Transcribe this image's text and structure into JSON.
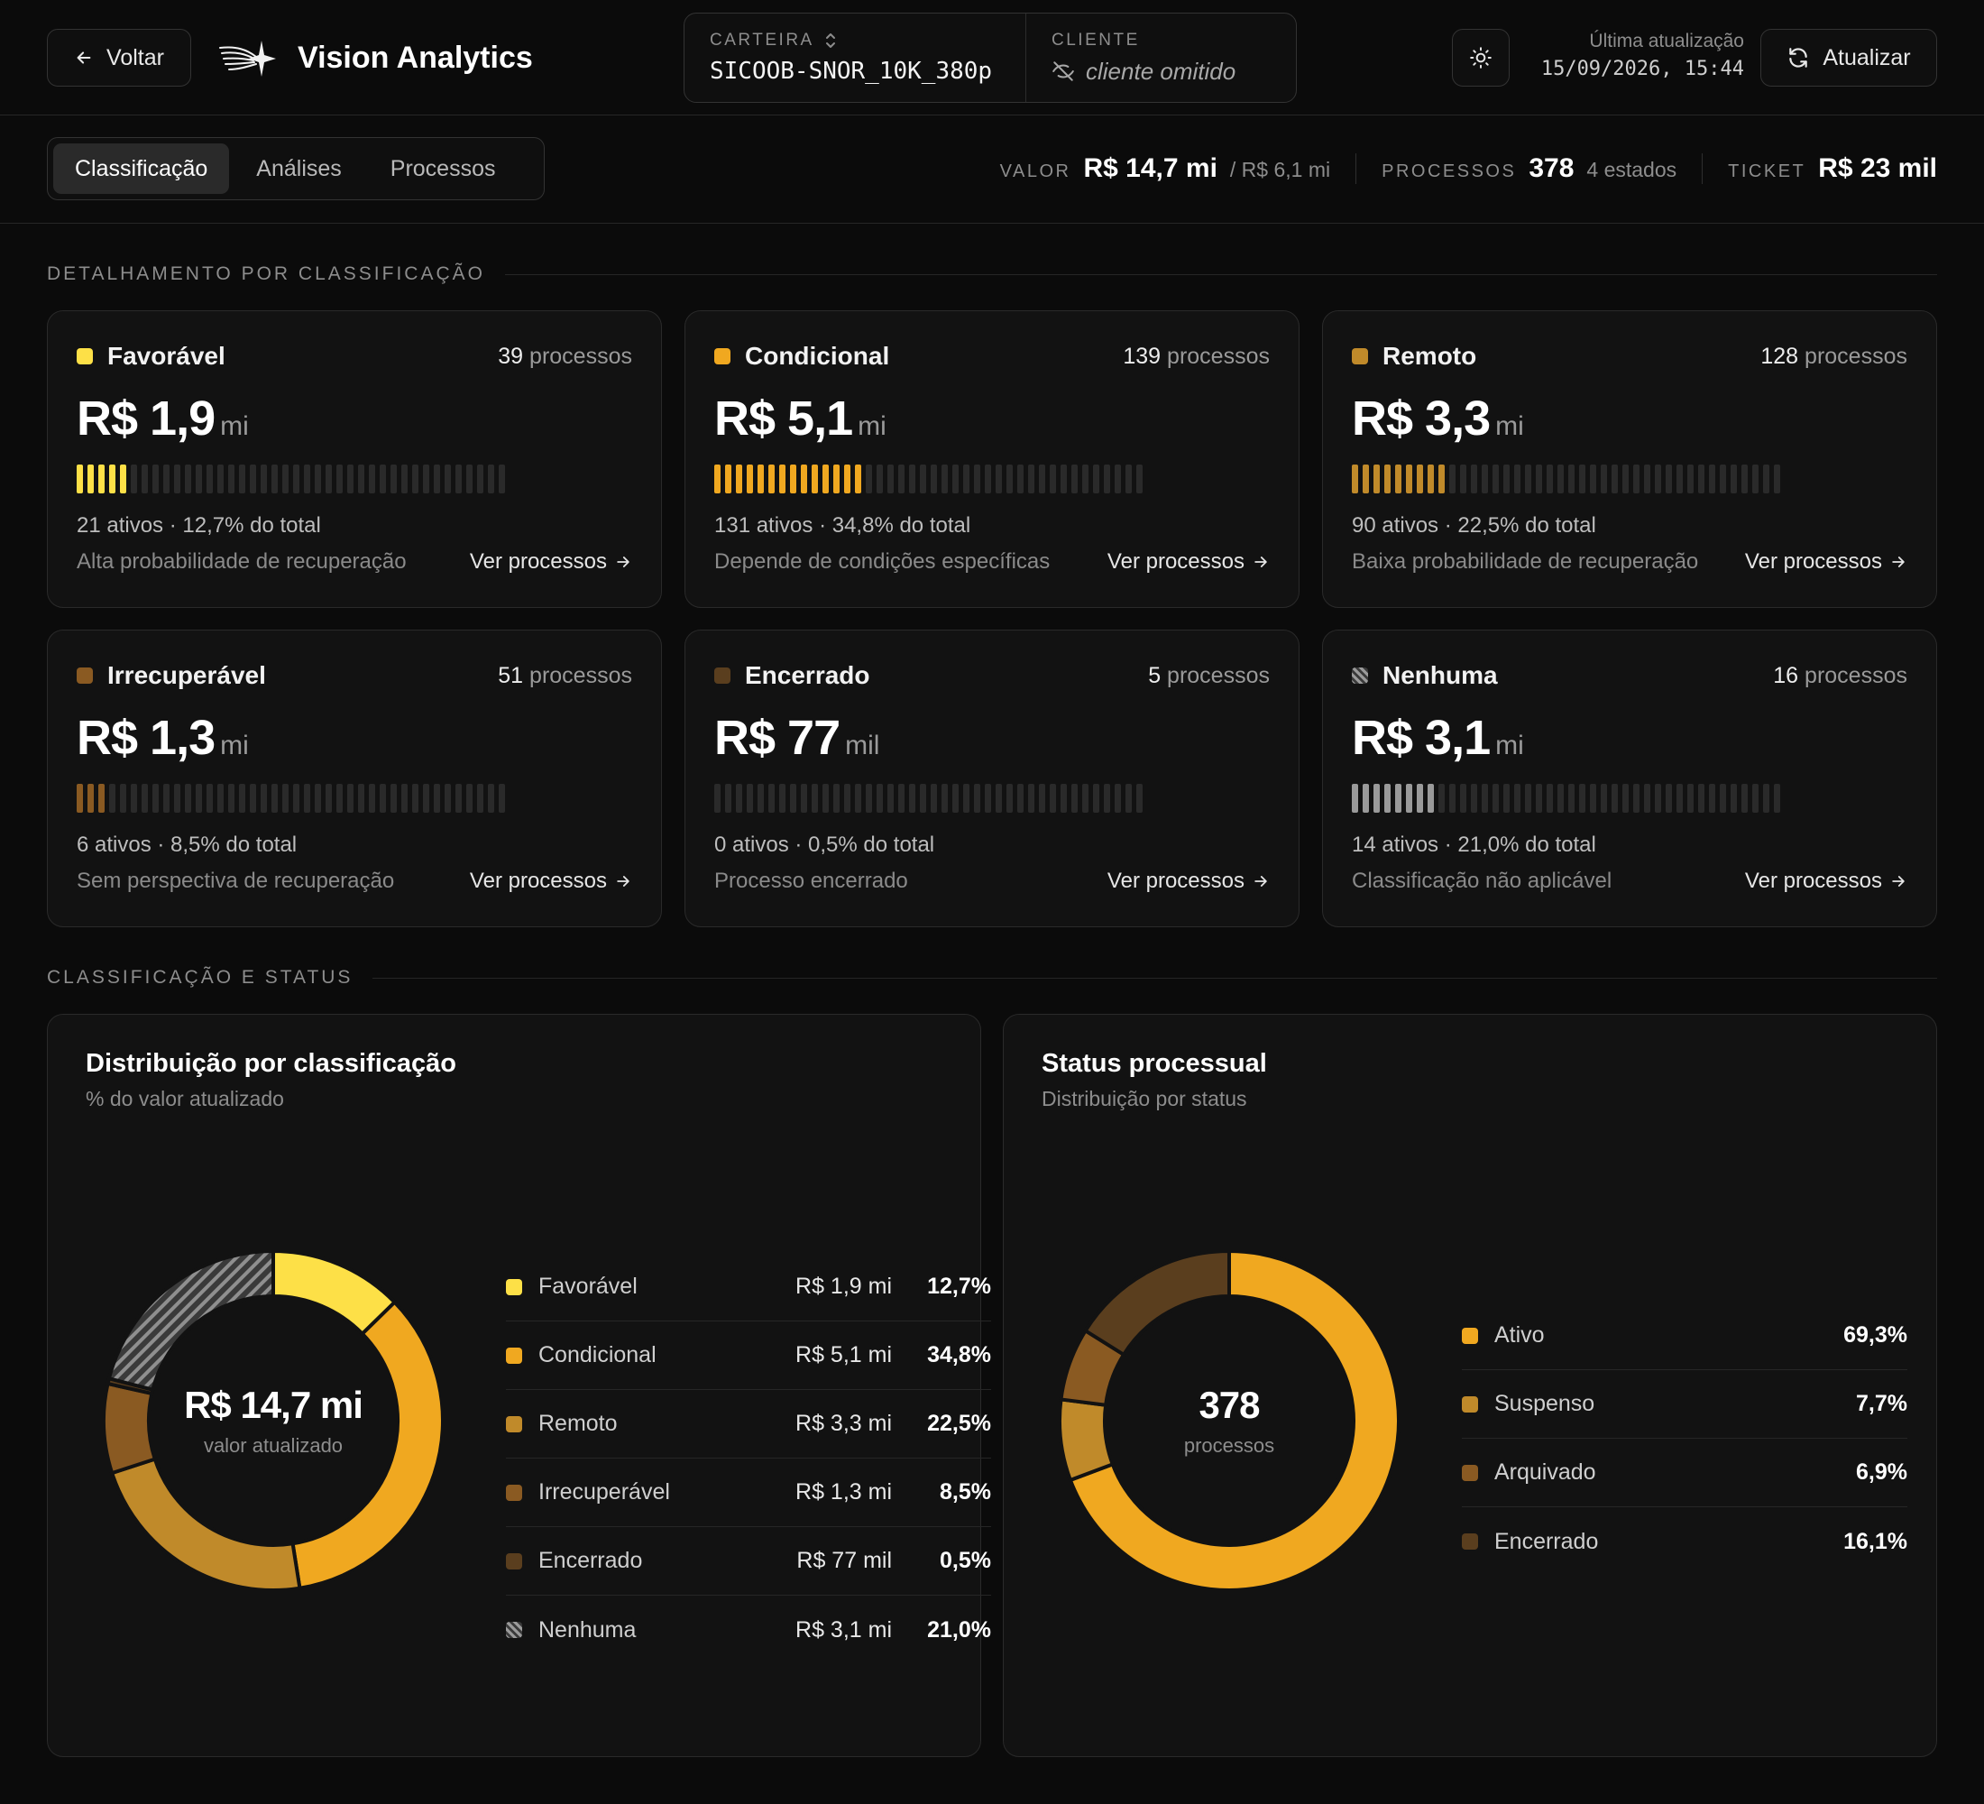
{
  "header": {
    "back_label": "Voltar",
    "brand": "Vision Analytics",
    "carteira_label": "CARTEIRA",
    "carteira_value": "SICOOB-SNOR_10K_380p",
    "cliente_label": "CLIENTE",
    "cliente_value": "cliente omitido",
    "update_label": "Última atualização",
    "update_time": "15/09/2026, 15:44",
    "refresh_label": "Atualizar"
  },
  "tabs": [
    {
      "label": "Classificação",
      "active": true
    },
    {
      "label": "Análises",
      "active": false
    },
    {
      "label": "Processos",
      "active": false
    }
  ],
  "metrics": {
    "valor_label": "VALOR",
    "valor_value": "R$ 14,7 mi",
    "valor_sub": "/ R$ 6,1 mi",
    "processos_label": "PROCESSOS",
    "processos_value": "378",
    "processos_sub": "4 estados",
    "ticket_label": "TICKET",
    "ticket_value": "R$ 23 mil"
  },
  "sections": {
    "detalhamento": "DETALHAMENTO POR CLASSIFICAÇÃO",
    "classificacao_status": "CLASSIFICAÇÃO E STATUS"
  },
  "cards": [
    {
      "name": "Favorável",
      "count": "39",
      "count_unit": "processos",
      "value": "R$ 1,9",
      "unit": "mi",
      "filled_segments": 5,
      "total_segments": 40,
      "stats": "21 ativos · 12,7% do total",
      "desc": "Alta probabilidade de recuperação",
      "link": "Ver processos",
      "color": "#fde047",
      "hatch": false
    },
    {
      "name": "Condicional",
      "count": "139",
      "count_unit": "processos",
      "value": "R$ 5,1",
      "unit": "mi",
      "filled_segments": 14,
      "total_segments": 40,
      "stats": "131 ativos · 34,8% do total",
      "desc": "Depende de condições específicas",
      "link": "Ver processos",
      "color": "#f0a820",
      "hatch": false
    },
    {
      "name": "Remoto",
      "count": "128",
      "count_unit": "processos",
      "value": "R$ 3,3",
      "unit": "mi",
      "filled_segments": 9,
      "total_segments": 40,
      "stats": "90 ativos · 22,5% do total",
      "desc": "Baixa probabilidade de recuperação",
      "link": "Ver processos",
      "color": "#c08a2a",
      "hatch": false
    },
    {
      "name": "Irrecuperável",
      "count": "51",
      "count_unit": "processos",
      "value": "R$ 1,3",
      "unit": "mi",
      "filled_segments": 3,
      "total_segments": 40,
      "stats": "6 ativos · 8,5% do total",
      "desc": "Sem perspectiva de recuperação",
      "link": "Ver processos",
      "color": "#8a5a22",
      "hatch": false
    },
    {
      "name": "Encerrado",
      "count": "5",
      "count_unit": "processos",
      "value": "R$ 77",
      "unit": "mil",
      "filled_segments": 0,
      "total_segments": 40,
      "stats": "0 ativos · 0,5% do total",
      "desc": "Processo encerrado",
      "link": "Ver processos",
      "color": "#5a3e1e",
      "hatch": false
    },
    {
      "name": "Nenhuma",
      "count": "16",
      "count_unit": "processos",
      "value": "R$ 3,1",
      "unit": "mi",
      "filled_segments": 8,
      "total_segments": 40,
      "stats": "14 ativos · 21,0% do total",
      "desc": "Classificação não aplicável",
      "link": "Ver processos",
      "color": "#9a9a9a",
      "hatch": true
    }
  ],
  "panel_classificacao": {
    "title": "Distribuição por classificação",
    "subtitle": "% do valor atualizado",
    "center_value": "R$ 14,7 mi",
    "center_label": "valor atualizado",
    "legend": [
      {
        "name": "Favorável",
        "value": "R$ 1,9 mi",
        "pct": "12,7%"
      },
      {
        "name": "Condicional",
        "value": "R$ 5,1 mi",
        "pct": "34,8%"
      },
      {
        "name": "Remoto",
        "value": "R$ 3,3 mi",
        "pct": "22,5%"
      },
      {
        "name": "Irrecuperável",
        "value": "R$ 1,3 mi",
        "pct": "8,5%"
      },
      {
        "name": "Encerrado",
        "value": "R$ 77 mil",
        "pct": "0,5%"
      },
      {
        "name": "Nenhuma",
        "value": "R$ 3,1 mi",
        "pct": "21,0%"
      }
    ]
  },
  "panel_status": {
    "title": "Status processual",
    "subtitle": "Distribuição por status",
    "center_value": "378",
    "center_label": "processos",
    "legend": [
      {
        "name": "Ativo",
        "pct": "69,3%"
      },
      {
        "name": "Suspenso",
        "pct": "7,7%"
      },
      {
        "name": "Arquivado",
        "pct": "6,9%"
      },
      {
        "name": "Encerrado",
        "pct": "16,1%"
      }
    ]
  },
  "chart_data": [
    {
      "type": "pie",
      "title": "Distribuição por classificação",
      "categories": [
        "Favorável",
        "Condicional",
        "Remoto",
        "Irrecuperável",
        "Encerrado",
        "Nenhuma"
      ],
      "values": [
        12.7,
        34.8,
        22.5,
        8.5,
        0.5,
        21.0
      ],
      "colors": [
        "#fde047",
        "#f0a820",
        "#c08a2a",
        "#8a5a22",
        "#5a3e1e",
        "#9a9a9a"
      ],
      "donut": true
    },
    {
      "type": "pie",
      "title": "Status processual",
      "categories": [
        "Ativo",
        "Suspenso",
        "Arquivado",
        "Encerrado"
      ],
      "values": [
        69.3,
        7.7,
        6.9,
        16.1
      ],
      "colors": [
        "#f0a820",
        "#c08a2a",
        "#8a5a22",
        "#5a3e1e"
      ],
      "donut": true
    }
  ]
}
